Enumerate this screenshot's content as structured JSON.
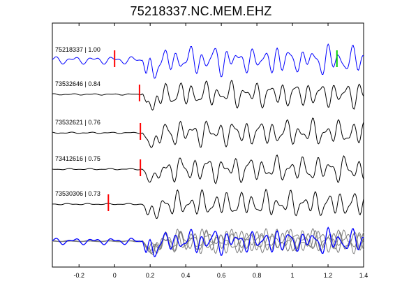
{
  "chart_data": {
    "type": "line",
    "title": "75218337.NC.MEM.EHZ",
    "xlim": [
      -0.35,
      1.4
    ],
    "xticks": [
      -0.2,
      0,
      0.2,
      0.4,
      0.6,
      0.8,
      1,
      1.2,
      1.4
    ],
    "xtick_labels": [
      "-0.2",
      "0",
      "0.2",
      "0.4",
      "0.6",
      "0.8",
      "1",
      "1.2",
      "1.4"
    ],
    "grid": false,
    "colors": {
      "reference_trace": "#0000ff",
      "other_traces": "#000000",
      "stack_gray": "#7f7f7f",
      "pick_marker": "#ff0000",
      "end_marker": "#00cc00"
    },
    "traces": [
      {
        "label": "75218337 | 1.00",
        "pick_time": 0.0,
        "color": "#0000ff"
      },
      {
        "label": "73532646 | 0.84",
        "pick_time": 0.14,
        "color": "#000000"
      },
      {
        "label": "73532621 | 0.76",
        "pick_time": 0.145,
        "color": "#000000"
      },
      {
        "label": "73412616 | 0.75",
        "pick_time": 0.145,
        "color": "#000000"
      },
      {
        "label": "73530306 | 0.73",
        "pick_time": -0.035,
        "color": "#000000"
      }
    ],
    "end_marker_time": 1.25
  }
}
